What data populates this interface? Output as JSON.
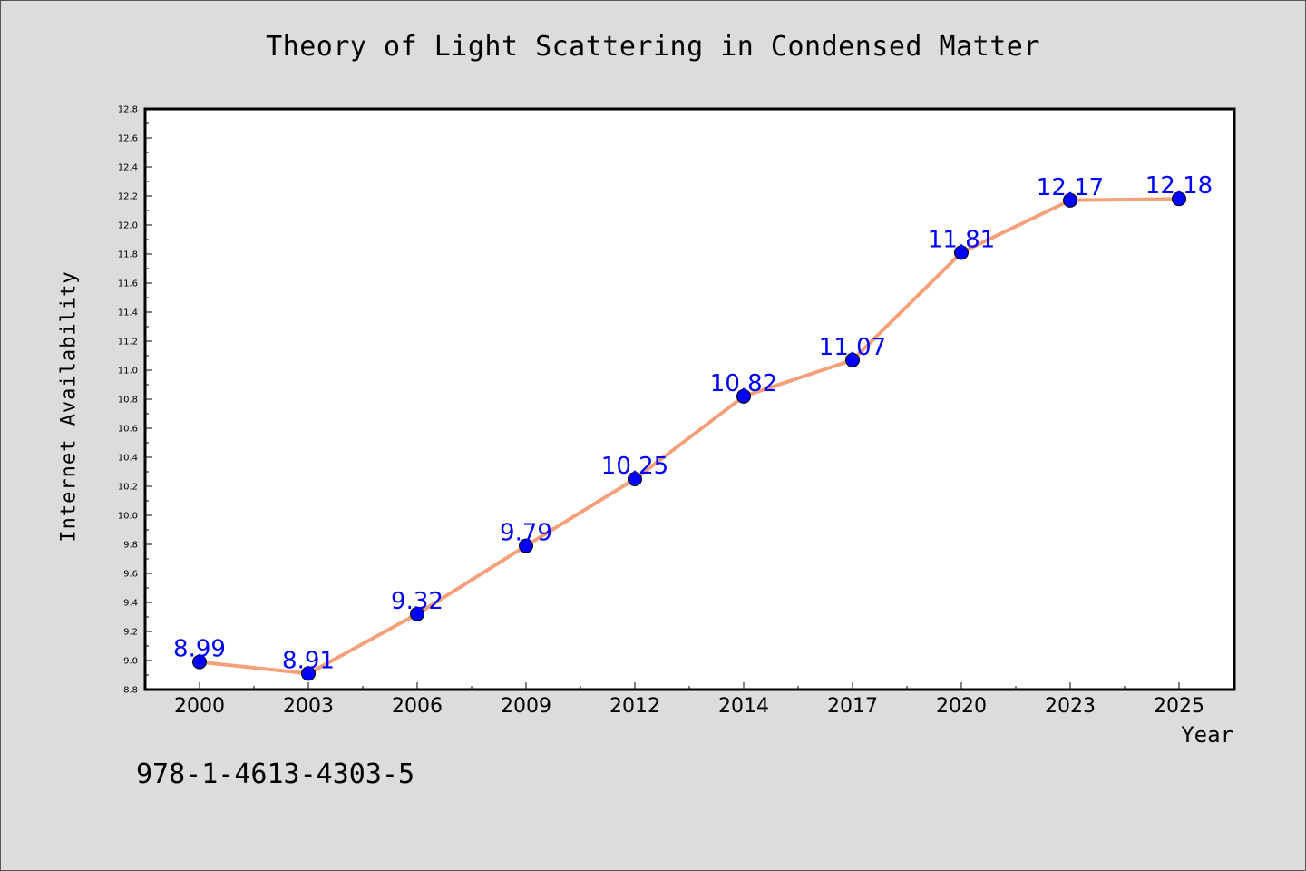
{
  "chart_data": {
    "type": "line",
    "title": "Theory of Light Scattering in Condensed Matter",
    "xlabel": "Year",
    "ylabel": "Internet Availability",
    "categories": [
      "2000",
      "2003",
      "2006",
      "2009",
      "2012",
      "2014",
      "2017",
      "2020",
      "2023",
      "2025"
    ],
    "series": [
      {
        "values": [
          8.99,
          8.91,
          9.32,
          9.79,
          10.25,
          10.82,
          11.07,
          11.81,
          12.17,
          12.18
        ],
        "data_labels": [
          "8.99",
          "8.91",
          "9.32",
          "9.79",
          "10.25",
          "10.82",
          "11.07",
          "11.81",
          "12.17",
          "12.18"
        ]
      }
    ],
    "ylim": [
      8.8,
      12.8
    ],
    "yticks": [
      "8.8",
      "9.0",
      "9.2",
      "9.4",
      "9.6",
      "9.8",
      "10.0",
      "10.2",
      "10.4",
      "10.6",
      "10.8",
      "11.0",
      "11.2",
      "11.4",
      "11.6",
      "11.8",
      "12.0",
      "12.2",
      "12.4",
      "12.6",
      "12.8"
    ],
    "grid": false,
    "legend": "none",
    "colors": {
      "line": "#f4a07a",
      "marker": "#0000ff",
      "data_label": "#0000ff",
      "plot_background": "#ffffff",
      "figure_background": "#dcdcdc"
    }
  },
  "footer": {
    "isbn": "978-1-4613-4303-5"
  }
}
